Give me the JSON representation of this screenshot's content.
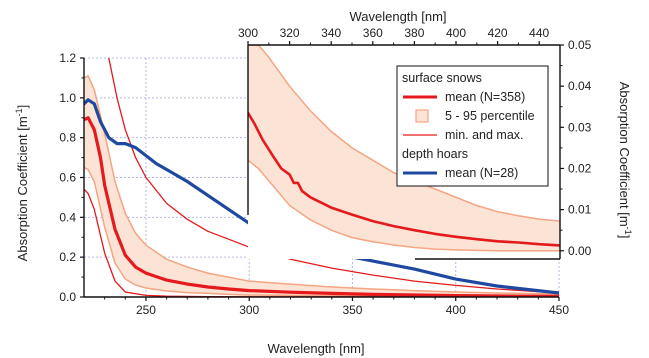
{
  "chart_data": [
    {
      "panel": "main",
      "type": "line",
      "xlabel": "Wavelength [nm]",
      "ylabel": "Absorption Coefficient [m",
      "ylabel_sup": "-1",
      "ylabel_close": "]",
      "xlim": [
        220,
        450
      ],
      "ylim": [
        0,
        1.2
      ],
      "x_ticks": [
        250,
        300,
        350,
        400,
        450
      ],
      "y_ticks": [
        0.0,
        0.2,
        0.4,
        0.6,
        0.8,
        1.0,
        1.2
      ],
      "y_tick_labels": [
        "0.0",
        "0.2",
        "0.4",
        "0.6",
        "0.8",
        "1.0",
        "1.2"
      ],
      "grid": true,
      "series": [
        {
          "key": "band",
          "kind": "band",
          "color": "#f4a582",
          "fill": "#fbe3d6",
          "x": [
            220,
            222,
            225,
            230,
            235,
            240,
            245,
            250,
            260,
            270,
            280,
            290,
            300,
            320,
            340,
            360,
            380,
            400,
            420,
            450
          ],
          "upper": [
            1.1,
            1.11,
            1.04,
            0.82,
            0.58,
            0.42,
            0.32,
            0.26,
            0.19,
            0.15,
            0.12,
            0.1,
            0.08,
            0.065,
            0.05,
            0.04,
            0.032,
            0.025,
            0.02,
            0.015
          ],
          "lower": [
            0.65,
            0.64,
            0.58,
            0.35,
            0.17,
            0.09,
            0.06,
            0.045,
            0.03,
            0.022,
            0.018,
            0.013,
            0.01,
            0.008,
            0.006,
            0.005,
            0.004,
            0.003,
            0.002,
            0.001
          ]
        },
        {
          "key": "surface_max",
          "kind": "line",
          "color": "#e41a1c",
          "width": 1.3,
          "x": [
            232,
            236,
            240,
            245,
            250,
            260,
            270,
            280,
            290,
            300,
            320,
            340,
            360,
            380,
            400,
            420,
            450
          ],
          "y": [
            1.2,
            1.0,
            0.84,
            0.7,
            0.6,
            0.47,
            0.39,
            0.33,
            0.29,
            0.25,
            0.19,
            0.145,
            0.11,
            0.08,
            0.058,
            0.04,
            0.02
          ]
        },
        {
          "key": "surface_min",
          "kind": "line",
          "color": "#e41a1c",
          "width": 1.3,
          "x": [
            220,
            222,
            225,
            230,
            235,
            240,
            250,
            260,
            280,
            300,
            350,
            400,
            450
          ],
          "y": [
            0.54,
            0.52,
            0.44,
            0.22,
            0.08,
            0.025,
            0.008,
            0.004,
            0.002,
            0.001,
            0.001,
            0.001,
            0.001
          ]
        },
        {
          "key": "surface_mean",
          "kind": "line",
          "color": "#e41a1c",
          "width": 3.2,
          "x": [
            220,
            222,
            225,
            228,
            230,
            235,
            240,
            245,
            250,
            260,
            270,
            280,
            290,
            300,
            320,
            340,
            360,
            380,
            400,
            420,
            450
          ],
          "y": [
            0.89,
            0.9,
            0.84,
            0.7,
            0.56,
            0.34,
            0.21,
            0.15,
            0.12,
            0.085,
            0.065,
            0.05,
            0.04,
            0.032,
            0.024,
            0.018,
            0.013,
            0.01,
            0.007,
            0.005,
            0.003
          ]
        },
        {
          "key": "depth_mean",
          "kind": "line",
          "color": "#1f48a0",
          "width": 3.2,
          "x": [
            220,
            222,
            225,
            228,
            232,
            236,
            240,
            245,
            250,
            255,
            260,
            270,
            280,
            290,
            300,
            320,
            340,
            360,
            380,
            400,
            420,
            450
          ],
          "y": [
            0.97,
            0.99,
            0.97,
            0.88,
            0.8,
            0.77,
            0.77,
            0.75,
            0.71,
            0.67,
            0.64,
            0.58,
            0.51,
            0.44,
            0.37,
            0.28,
            0.22,
            0.18,
            0.14,
            0.09,
            0.055,
            0.02
          ]
        }
      ]
    },
    {
      "panel": "inset",
      "type": "area",
      "xlabel": "Wavelength [nm]",
      "ylabel": "Absorption Coefficient [m",
      "ylabel_sup": "-1",
      "ylabel_close": "]",
      "xlim": [
        300,
        450
      ],
      "ylim": [
        -0.002,
        0.05
      ],
      "x_ticks": [
        300,
        320,
        340,
        360,
        380,
        400,
        420,
        440
      ],
      "y_ticks": [
        0.0,
        0.01,
        0.02,
        0.03,
        0.04,
        0.05
      ],
      "y_tick_labels": [
        "0.00",
        "0.01",
        "0.02",
        "0.03",
        "0.04",
        "0.05"
      ],
      "series": [
        {
          "key": "band",
          "kind": "band",
          "color": "#f4a582",
          "fill": "#fbe3d6",
          "x": [
            300,
            305,
            310,
            320,
            330,
            340,
            350,
            360,
            370,
            380,
            390,
            400,
            410,
            420,
            430,
            440,
            450
          ],
          "upper": [
            0.05,
            0.05,
            0.047,
            0.04,
            0.034,
            0.029,
            0.025,
            0.022,
            0.019,
            0.017,
            0.015,
            0.013,
            0.011,
            0.0095,
            0.0085,
            0.0077,
            0.0072
          ],
          "lower": [
            0.022,
            0.02,
            0.017,
            0.011,
            0.0075,
            0.005,
            0.0032,
            0.0022,
            0.0014,
            0.0008,
            0.0004,
            0.0002,
            0.0001,
            0.0,
            0.0,
            0.0,
            0.0
          ]
        },
        {
          "key": "surface_mean",
          "kind": "line",
          "color": "#e41a1c",
          "width": 2.6,
          "x": [
            300,
            303,
            307,
            312,
            316,
            320,
            322,
            324,
            326,
            330,
            340,
            350,
            360,
            370,
            380,
            390,
            400,
            410,
            420,
            430,
            440,
            450
          ],
          "y": [
            0.0335,
            0.031,
            0.027,
            0.023,
            0.02,
            0.0185,
            0.0165,
            0.0165,
            0.0145,
            0.013,
            0.0105,
            0.0088,
            0.0072,
            0.006,
            0.005,
            0.0041,
            0.0034,
            0.0028,
            0.0023,
            0.002,
            0.0016,
            0.0013
          ]
        }
      ]
    }
  ],
  "legend": {
    "group1": "surface snows",
    "items1": [
      {
        "label": "mean (N=358)",
        "kind": "line-thick",
        "color": "#e41a1c"
      },
      {
        "label": "5 - 95 percentile",
        "kind": "box",
        "color": "#f4a582",
        "fill": "#fbe3d6"
      },
      {
        "label": "min. and max.",
        "kind": "line-thin",
        "color": "#e41a1c"
      }
    ],
    "group2": "depth hoars",
    "items2": [
      {
        "label": "mean (N=28)",
        "kind": "line-thick",
        "color": "#1f48a0"
      }
    ]
  }
}
